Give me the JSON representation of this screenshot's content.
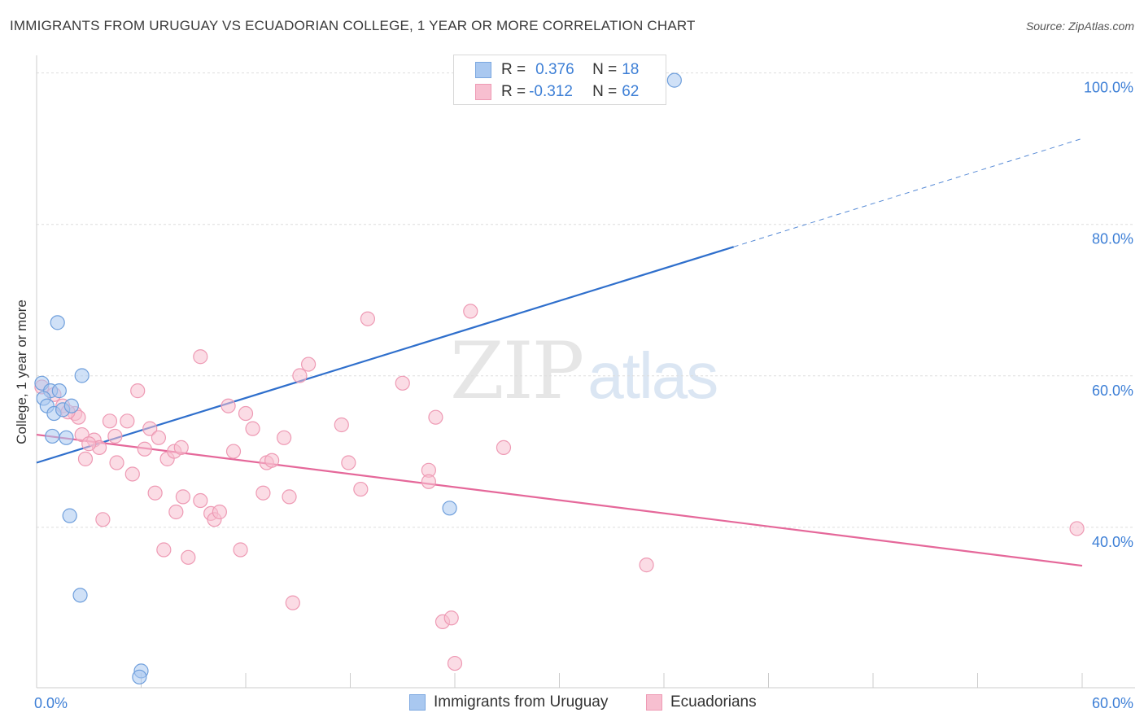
{
  "title": "IMMIGRANTS FROM URUGUAY VS ECUADORIAN COLLEGE, 1 YEAR OR MORE CORRELATION CHART",
  "source": "Source: ZipAtlas.com",
  "watermark": {
    "zip": "ZIP",
    "atlas": "atlas"
  },
  "legend_top": {
    "rows": [
      {
        "r_label": "R = ",
        "r_value": "0.376",
        "n_label": "N = ",
        "n_value": "18",
        "color": "#a9c8f0",
        "border": "#7ba7e0"
      },
      {
        "r_label": "R = ",
        "r_value": "-0.312",
        "n_label": "N = ",
        "n_value": "62",
        "color": "#f7bfd0",
        "border": "#ee9ab4"
      }
    ]
  },
  "legend_bottom": [
    {
      "label": "Immigrants from Uruguay",
      "color": "#a9c8f0",
      "border": "#7ba7e0"
    },
    {
      "label": "Ecuadorians",
      "color": "#f7bfd0",
      "border": "#ee9ab4"
    }
  ],
  "chart_data": {
    "type": "scatter",
    "title": "IMMIGRANTS FROM URUGUAY VS ECUADORIAN COLLEGE, 1 YEAR OR MORE CORRELATION CHART",
    "xlabel": "",
    "ylabel": "College, 1 year or more",
    "xlim": [
      0,
      60
    ],
    "ylim": [
      20,
      102
    ],
    "x_tick_labels": [
      {
        "value": 0,
        "label": "0.0%"
      },
      {
        "value": 60,
        "label": "60.0%"
      }
    ],
    "y_tick_labels": [
      {
        "value": 100,
        "label": "100.0%"
      },
      {
        "value": 80,
        "label": "80.0%"
      },
      {
        "value": 60,
        "label": "60.0%"
      },
      {
        "value": 40,
        "label": "40.0%"
      }
    ],
    "x_minor_ticks": [
      0,
      6,
      12,
      18,
      24,
      30,
      36,
      42,
      48,
      54,
      60
    ],
    "grid": true,
    "series": [
      {
        "name": "Immigrants from Uruguay",
        "color": "#a9c8f0",
        "edge": "#6f9fdc",
        "line_color": "#2f6fcc",
        "trend": {
          "x0": 0,
          "y0": 49.5,
          "x1": 40,
          "y1": 78,
          "x_dash_end": 60,
          "y_dash_end": 92.3
        },
        "points": [
          [
            0.3,
            60.0
          ],
          [
            0.8,
            59.0
          ],
          [
            1.3,
            59.0
          ],
          [
            0.4,
            58.0
          ],
          [
            0.6,
            57.0
          ],
          [
            1.0,
            56.0
          ],
          [
            1.5,
            56.5
          ],
          [
            2.0,
            57.0
          ],
          [
            0.9,
            53.0
          ],
          [
            1.7,
            52.8
          ],
          [
            1.2,
            68.0
          ],
          [
            2.6,
            61.0
          ],
          [
            1.9,
            42.5
          ],
          [
            2.5,
            32.0
          ],
          [
            6.0,
            22.0
          ],
          [
            5.9,
            21.2
          ],
          [
            23.7,
            43.5
          ],
          [
            36.6,
            100.0
          ]
        ]
      },
      {
        "name": "Ecuadorians",
        "color": "#f7bfd0",
        "edge": "#ee9ab4",
        "line_color": "#e5689a",
        "trend": {
          "x0": 0,
          "y0": 53.2,
          "x1": 60,
          "y1": 35.9
        },
        "points": [
          [
            0.3,
            59.5
          ],
          [
            1.0,
            58.5
          ],
          [
            1.5,
            57.0
          ],
          [
            2.2,
            56.0
          ],
          [
            2.4,
            55.5
          ],
          [
            2.6,
            53.2
          ],
          [
            3.3,
            52.5
          ],
          [
            3.6,
            51.5
          ],
          [
            2.8,
            50.0
          ],
          [
            4.2,
            55.0
          ],
          [
            4.5,
            53.0
          ],
          [
            5.2,
            55.0
          ],
          [
            5.8,
            59.0
          ],
          [
            6.2,
            51.3
          ],
          [
            6.5,
            54.0
          ],
          [
            7.0,
            52.8
          ],
          [
            7.5,
            50.0
          ],
          [
            7.9,
            51.0
          ],
          [
            5.5,
            48.0
          ],
          [
            4.6,
            49.5
          ],
          [
            6.8,
            45.5
          ],
          [
            8.4,
            45.0
          ],
          [
            9.4,
            44.5
          ],
          [
            8.0,
            43.0
          ],
          [
            10.0,
            42.8
          ],
          [
            10.2,
            42.0
          ],
          [
            11.0,
            57.0
          ],
          [
            9.4,
            63.5
          ],
          [
            11.3,
            51.0
          ],
          [
            12.4,
            54.0
          ],
          [
            11.7,
            38.0
          ],
          [
            7.3,
            38.0
          ],
          [
            8.7,
            37.0
          ],
          [
            13.2,
            49.5
          ],
          [
            13.0,
            45.5
          ],
          [
            13.5,
            49.8
          ],
          [
            14.2,
            52.8
          ],
          [
            14.5,
            45.0
          ],
          [
            15.1,
            61.0
          ],
          [
            15.6,
            62.5
          ],
          [
            14.7,
            31.0
          ],
          [
            17.5,
            54.5
          ],
          [
            17.9,
            49.5
          ],
          [
            18.6,
            46.0
          ],
          [
            19.0,
            68.5
          ],
          [
            21.0,
            60.0
          ],
          [
            22.5,
            48.5
          ],
          [
            22.5,
            47.0
          ],
          [
            22.9,
            55.5
          ],
          [
            23.3,
            28.5
          ],
          [
            23.8,
            29.0
          ],
          [
            24.0,
            23.0
          ],
          [
            24.9,
            69.5
          ],
          [
            26.8,
            51.5
          ],
          [
            35.0,
            36.0
          ],
          [
            59.7,
            40.8
          ],
          [
            3.8,
            42.0
          ],
          [
            8.3,
            51.5
          ],
          [
            1.8,
            56.2
          ],
          [
            3.0,
            52.0
          ],
          [
            10.5,
            43.0
          ],
          [
            12.0,
            56.0
          ]
        ]
      }
    ]
  }
}
